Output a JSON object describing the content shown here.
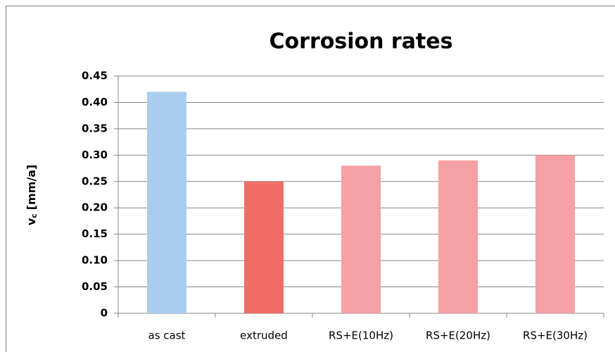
{
  "chart_data": {
    "type": "bar",
    "title": "Corrosion rates",
    "y_label": [
      "v",
      "c",
      "[mm/a]"
    ],
    "categories": [
      "as cast",
      "extruded",
      "RS+E(10Hz)",
      "RS+E(20Hz)",
      "RS+E(30Hz)"
    ],
    "values": [
      0.42,
      0.25,
      0.28,
      0.29,
      0.3
    ],
    "colors": [
      "#a9cdee",
      "#f06e63",
      "#f5a0a5",
      "#f5a0a5",
      "#f5a0a5"
    ],
    "ylim": [
      0,
      0.45
    ],
    "yticks": [
      0,
      0.05,
      {
        "value": 0.1,
        "label": "0.10"
      },
      0.15,
      {
        "value": 0.2,
        "label": "0.20"
      },
      0.25,
      {
        "value": 0.3,
        "label": "0.30"
      },
      0.35,
      {
        "value": 0.4,
        "label": "0.40"
      },
      0.45
    ],
    "grid": true
  }
}
